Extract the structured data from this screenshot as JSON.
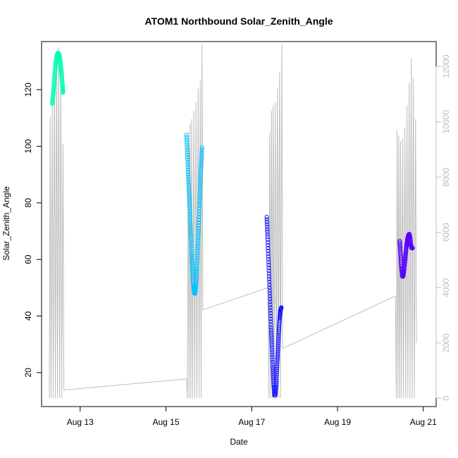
{
  "chart_data": {
    "type": "scatter",
    "title": "ATOM1 Northbound Solar_Zenith_Angle",
    "xlabel": "Date",
    "ylabel": "Solar_Zenith_Angle",
    "x_unit": "days in August",
    "xlim": [
      12.1,
      21.3
    ],
    "ylim": [
      8,
      137
    ],
    "x_ticks": [
      {
        "value": 13,
        "label": "Aug 13"
      },
      {
        "value": 15,
        "label": "Aug 15"
      },
      {
        "value": 17,
        "label": "Aug 17"
      },
      {
        "value": 19,
        "label": "Aug 19"
      },
      {
        "value": 21,
        "label": "Aug 21"
      }
    ],
    "y_ticks": [
      20,
      40,
      60,
      80,
      100,
      120
    ],
    "y2_ticks": [
      0,
      2000,
      4000,
      6000,
      8000,
      10000,
      12000
    ],
    "y2lim": [
      -300,
      12900
    ],
    "grid": false,
    "legend": "none",
    "series": [
      {
        "color": "#00FFB3",
        "points": [
          [
            12.35,
            115
          ],
          [
            12.37,
            118
          ],
          [
            12.39,
            122
          ],
          [
            12.41,
            126
          ],
          [
            12.43,
            129
          ],
          [
            12.45,
            131.5
          ],
          [
            12.47,
            132.8
          ],
          [
            12.49,
            133
          ],
          [
            12.51,
            132.5
          ],
          [
            12.53,
            131
          ],
          [
            12.55,
            128
          ],
          [
            12.57,
            125
          ],
          [
            12.59,
            121
          ],
          [
            12.6,
            119
          ]
        ]
      },
      {
        "color": "#00BFFF",
        "points": [
          [
            15.48,
            104
          ],
          [
            15.5,
            97
          ],
          [
            15.52,
            90
          ],
          [
            15.54,
            83
          ],
          [
            15.56,
            76
          ],
          [
            15.58,
            69
          ],
          [
            15.6,
            62
          ],
          [
            15.62,
            56
          ],
          [
            15.64,
            51
          ],
          [
            15.66,
            48
          ],
          [
            15.68,
            48
          ],
          [
            15.7,
            51
          ],
          [
            15.72,
            57
          ],
          [
            15.74,
            64
          ],
          [
            15.76,
            71
          ],
          [
            15.78,
            79
          ],
          [
            15.8,
            86
          ],
          [
            15.82,
            93
          ],
          [
            15.84,
            99.5
          ]
        ]
      },
      {
        "color": "#1A1AFF",
        "points": [
          [
            17.35,
            75
          ],
          [
            17.37,
            68
          ],
          [
            17.39,
            60
          ],
          [
            17.41,
            52
          ],
          [
            17.43,
            44
          ],
          [
            17.45,
            36
          ],
          [
            17.47,
            29
          ],
          [
            17.49,
            22
          ],
          [
            17.51,
            16
          ],
          [
            17.53,
            12
          ],
          [
            17.55,
            12
          ],
          [
            17.57,
            16
          ],
          [
            17.59,
            22
          ],
          [
            17.61,
            28
          ],
          [
            17.63,
            34
          ],
          [
            17.65,
            39
          ],
          [
            17.67,
            42
          ],
          [
            17.69,
            43
          ]
        ]
      },
      {
        "color": "#5A00FF",
        "points": [
          [
            20.45,
            66.5
          ],
          [
            20.47,
            62
          ],
          [
            20.49,
            57
          ],
          [
            20.51,
            54
          ],
          [
            20.53,
            54
          ],
          [
            20.55,
            56
          ],
          [
            20.57,
            59
          ],
          [
            20.59,
            62
          ],
          [
            20.61,
            65
          ],
          [
            20.63,
            67
          ],
          [
            20.65,
            68.5
          ],
          [
            20.67,
            69
          ],
          [
            20.69,
            68
          ],
          [
            20.71,
            65
          ],
          [
            20.73,
            64
          ],
          [
            20.75,
            64
          ]
        ]
      }
    ],
    "secondary_series": {
      "color": "#bdbdbd",
      "axis": "right",
      "points": [
        [
          12.28,
          0
        ],
        [
          12.3,
          10200
        ],
        [
          12.32,
          0
        ],
        [
          12.35,
          10800
        ],
        [
          12.37,
          0
        ],
        [
          12.4,
          11800
        ],
        [
          12.42,
          0
        ],
        [
          12.45,
          12300
        ],
        [
          12.47,
          0
        ],
        [
          12.5,
          12700
        ],
        [
          12.52,
          0
        ],
        [
          12.55,
          12100
        ],
        [
          12.57,
          0
        ],
        [
          12.6,
          9200
        ],
        [
          12.62,
          300
        ],
        [
          15.48,
          700
        ],
        [
          15.5,
          0
        ],
        [
          15.52,
          9600
        ],
        [
          15.54,
          0
        ],
        [
          15.56,
          9900
        ],
        [
          15.58,
          0
        ],
        [
          15.6,
          10100
        ],
        [
          15.62,
          0
        ],
        [
          15.65,
          10400
        ],
        [
          15.67,
          0
        ],
        [
          15.7,
          10700
        ],
        [
          15.72,
          0
        ],
        [
          15.75,
          11200
        ],
        [
          15.77,
          0
        ],
        [
          15.8,
          11500
        ],
        [
          15.82,
          0
        ],
        [
          15.84,
          12800
        ],
        [
          15.86,
          3200
        ],
        [
          17.38,
          4000
        ],
        [
          17.4,
          0
        ],
        [
          17.42,
          9600
        ],
        [
          17.44,
          0
        ],
        [
          17.46,
          10400
        ],
        [
          17.48,
          0
        ],
        [
          17.5,
          10600
        ],
        [
          17.52,
          0
        ],
        [
          17.55,
          10700
        ],
        [
          17.57,
          0
        ],
        [
          17.6,
          11200
        ],
        [
          17.62,
          0
        ],
        [
          17.65,
          11800
        ],
        [
          17.67,
          0
        ],
        [
          17.7,
          12800
        ],
        [
          17.72,
          1800
        ],
        [
          20.35,
          3700
        ],
        [
          20.37,
          0
        ],
        [
          20.39,
          9700
        ],
        [
          20.41,
          0
        ],
        [
          20.43,
          9500
        ],
        [
          20.45,
          0
        ],
        [
          20.47,
          9300
        ],
        [
          20.49,
          0
        ],
        [
          20.52,
          9400
        ],
        [
          20.54,
          0
        ],
        [
          20.57,
          9800
        ],
        [
          20.59,
          0
        ],
        [
          20.62,
          10600
        ],
        [
          20.64,
          0
        ],
        [
          20.67,
          11400
        ],
        [
          20.69,
          0
        ],
        [
          20.72,
          12300
        ],
        [
          20.74,
          0
        ],
        [
          20.77,
          11600
        ],
        [
          20.79,
          0
        ],
        [
          20.82,
          10100
        ],
        [
          20.84,
          2000
        ]
      ]
    }
  }
}
